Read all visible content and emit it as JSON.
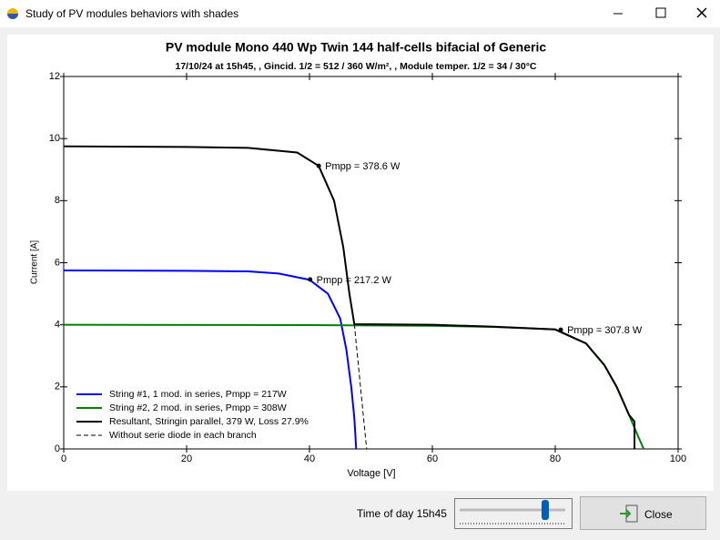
{
  "window": {
    "title": "Study of PV modules behaviors with shades",
    "slider_label": "Time of day 15h45",
    "close_button": "Close"
  },
  "chart_data": {
    "type": "line",
    "title": "PV module Mono 440 Wp Twin 144 half-cells bifacial of Generic",
    "subtitle": "17/10/24 at 15h45, , Gincid. 1/2 = 512 / 360 W/m², , Module temper. 1/2 = 34 / 30°C",
    "xlabel": "Voltage [V]",
    "ylabel": "Current [A]",
    "xlim": [
      0,
      100
    ],
    "ylim": [
      0,
      12
    ],
    "xticks": [
      0,
      20,
      40,
      60,
      80,
      100
    ],
    "yticks": [
      0,
      2,
      4,
      6,
      8,
      10,
      12
    ],
    "grid": false,
    "legend": "lower left",
    "series": [
      {
        "name": "String #1, 1 mod. in series, Pmpp = 217W",
        "color": "#0000ff",
        "linestyle": "solid",
        "x": [
          0,
          20,
          30,
          35,
          40,
          43,
          45,
          46,
          46.8,
          47.3,
          47.6
        ],
        "values": [
          5.75,
          5.74,
          5.72,
          5.65,
          5.45,
          5.0,
          4.2,
          3.2,
          2.0,
          1.0,
          0
        ]
      },
      {
        "name": "String #2, 2 mod. in series, Pmpp = 308W",
        "color": "#008000",
        "linestyle": "solid",
        "x": [
          0,
          40,
          60,
          70,
          80,
          85,
          88,
          90,
          92,
          93.5,
          94.4
        ],
        "values": [
          4.0,
          3.99,
          3.97,
          3.93,
          3.85,
          3.4,
          2.7,
          2.0,
          1.1,
          0.4,
          0
        ]
      },
      {
        "name": "Resultant, Stringin parallel, 379 W, Loss 27.9%",
        "color": "#000000",
        "linestyle": "solid",
        "x": [
          0,
          20,
          30,
          38,
          41.5,
          44,
          45.5,
          46.5,
          47.3,
          60,
          70,
          80,
          85,
          88,
          90,
          92,
          92.9,
          92.9
        ],
        "values": [
          9.75,
          9.73,
          9.7,
          9.55,
          9.12,
          8.0,
          6.5,
          5.0,
          4.02,
          4.0,
          3.94,
          3.85,
          3.4,
          2.7,
          2.0,
          1.1,
          0.88,
          0
        ]
      },
      {
        "name": "Without serie diode in each branch",
        "color": "#000000",
        "linestyle": "dashed",
        "x": [
          47.3,
          49.3
        ],
        "values": [
          4.02,
          0
        ]
      }
    ],
    "annotations": [
      {
        "x": 41.5,
        "y": 9.12,
        "text": "Pmpp = 378.6 W"
      },
      {
        "x": 40.1,
        "y": 5.46,
        "text": "Pmpp = 217.2 W"
      },
      {
        "x": 80.9,
        "y": 3.84,
        "text": "Pmpp = 307.8 W"
      }
    ]
  }
}
